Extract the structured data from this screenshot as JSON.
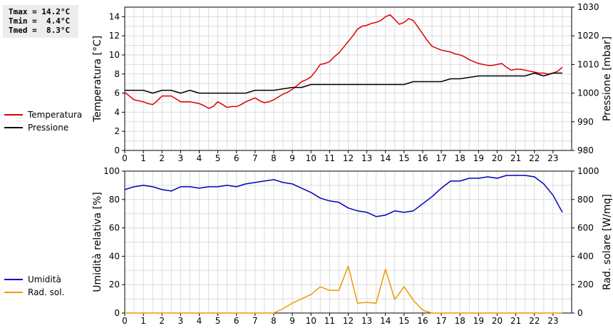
{
  "stats": {
    "tmax": "Tmax = 14.2°C",
    "tmin": "Tmin =  4.4°C",
    "tmed": "Tmed =  8.3°C"
  },
  "chart_data": [
    {
      "type": "line",
      "ylabel": "Temperatura [°C]",
      "y2label": "Pressione [mbar]",
      "xlim": [
        0,
        24
      ],
      "ylim": [
        0,
        15
      ],
      "y2lim": [
        980,
        1030
      ],
      "xticks": [
        0,
        1,
        2,
        3,
        4,
        5,
        6,
        7,
        8,
        9,
        10,
        11,
        12,
        13,
        14,
        15,
        16,
        17,
        18,
        19,
        20,
        21,
        22,
        23
      ],
      "yticks": [
        0,
        2,
        4,
        6,
        8,
        10,
        12,
        14
      ],
      "y2ticks": [
        980,
        990,
        1000,
        1010,
        1020,
        1030
      ],
      "grid": true,
      "legend_position": "left",
      "series": [
        {
          "name": "Temperatura",
          "axis": "left",
          "color": "#dd0000",
          "x": [
            0,
            0.25,
            0.5,
            0.75,
            1,
            1.25,
            1.5,
            1.75,
            2,
            2.25,
            2.5,
            2.75,
            3,
            3.25,
            3.5,
            3.75,
            4,
            4.25,
            4.5,
            4.75,
            5,
            5.25,
            5.5,
            5.75,
            6,
            6.25,
            6.5,
            6.75,
            7,
            7.25,
            7.5,
            7.75,
            8,
            8.25,
            8.5,
            8.75,
            9,
            9.25,
            9.5,
            9.75,
            10,
            10.25,
            10.5,
            10.75,
            11,
            11.25,
            11.5,
            11.75,
            12,
            12.25,
            12.5,
            12.75,
            13,
            13.25,
            13.5,
            13.75,
            14,
            14.25,
            14.5,
            14.75,
            15,
            15.25,
            15.5,
            15.75,
            16,
            16.25,
            16.5,
            16.75,
            17,
            17.25,
            17.5,
            17.75,
            18,
            18.25,
            18.5,
            18.75,
            19,
            19.25,
            19.5,
            19.75,
            20,
            20.25,
            20.5,
            20.75,
            21,
            21.25,
            21.5,
            21.75,
            22,
            22.25,
            22.5,
            22.75,
            23,
            23.25,
            23.5
          ],
          "values": [
            6.1,
            5.7,
            5.3,
            5.2,
            5.1,
            4.9,
            4.8,
            5.2,
            5.7,
            5.7,
            5.7,
            5.4,
            5.1,
            5.1,
            5.1,
            5.0,
            4.9,
            4.7,
            4.4,
            4.6,
            5.1,
            4.8,
            4.5,
            4.6,
            4.6,
            4.8,
            5.1,
            5.3,
            5.5,
            5.2,
            5.0,
            5.1,
            5.3,
            5.6,
            5.9,
            6.1,
            6.4,
            6.8,
            7.2,
            7.4,
            7.7,
            8.3,
            9.0,
            9.1,
            9.3,
            9.8,
            10.2,
            10.8,
            11.4,
            12.0,
            12.7,
            13.0,
            13.1,
            13.3,
            13.4,
            13.6,
            14.0,
            14.2,
            13.7,
            13.2,
            13.4,
            13.8,
            13.6,
            12.9,
            12.2,
            11.5,
            10.9,
            10.7,
            10.5,
            10.4,
            10.3,
            10.1,
            10.0,
            9.8,
            9.5,
            9.3,
            9.1,
            9.0,
            8.9,
            8.9,
            9.0,
            9.1,
            8.7,
            8.4,
            8.5,
            8.5,
            8.4,
            8.3,
            8.2,
            8.1,
            8.1,
            8.0,
            8.1,
            8.3,
            8.7
          ]
        },
        {
          "name": "Pressione",
          "axis": "right",
          "color": "#000000",
          "x": [
            0,
            1,
            1.5,
            2,
            2.5,
            3,
            3.5,
            4,
            4.5,
            5,
            6,
            6.5,
            7,
            8,
            9,
            9.5,
            10,
            11,
            12,
            13,
            14,
            15,
            15.5,
            16,
            17,
            17.5,
            18,
            19,
            20,
            21,
            21.5,
            22,
            22.5,
            23,
            23.5
          ],
          "values": [
            1001,
            1001,
            1000,
            1001,
            1001,
            1000,
            1001,
            1000,
            1000,
            1000,
            1000,
            1000,
            1001,
            1001,
            1002,
            1002,
            1003,
            1003,
            1003,
            1003,
            1003,
            1003,
            1004,
            1004,
            1004,
            1005,
            1005,
            1006,
            1006,
            1006,
            1006,
            1007,
            1006,
            1007,
            1007
          ]
        }
      ]
    },
    {
      "type": "line",
      "ylabel": "Umidità relativa [%]",
      "y2label": "Rad. solare [W/mq]",
      "xlim": [
        0,
        24
      ],
      "ylim": [
        0,
        100
      ],
      "y2lim": [
        0,
        1000
      ],
      "xticks": [
        0,
        1,
        2,
        3,
        4,
        5,
        6,
        7,
        8,
        9,
        10,
        11,
        12,
        13,
        14,
        15,
        16,
        17,
        18,
        19,
        20,
        21,
        22,
        23
      ],
      "yticks": [
        0,
        20,
        40,
        60,
        80,
        100
      ],
      "y2ticks": [
        0,
        200,
        400,
        600,
        800,
        1000
      ],
      "grid": true,
      "legend_position": "left",
      "series": [
        {
          "name": "Umidità",
          "axis": "left",
          "color": "#0000bb",
          "x": [
            0,
            0.5,
            1,
            1.5,
            2,
            2.5,
            3,
            3.5,
            4,
            4.5,
            5,
            5.5,
            6,
            6.5,
            7,
            7.5,
            8,
            8.5,
            9,
            9.5,
            10,
            10.5,
            11,
            11.5,
            12,
            12.5,
            13,
            13.5,
            14,
            14.5,
            15,
            15.5,
            16,
            16.5,
            17,
            17.5,
            18,
            18.5,
            19,
            19.5,
            20,
            20.5,
            21,
            21.5,
            22,
            22.5,
            23,
            23.5
          ],
          "values": [
            87,
            89,
            90,
            89,
            87,
            86,
            89,
            89,
            88,
            89,
            89,
            90,
            89,
            91,
            92,
            93,
            94,
            92,
            91,
            88,
            85,
            81,
            79,
            78,
            74,
            72,
            71,
            68,
            69,
            72,
            71,
            72,
            77,
            82,
            88,
            93,
            93,
            95,
            95,
            96,
            95,
            97,
            97,
            97,
            96,
            91,
            83,
            71
          ]
        },
        {
          "name": "Rad. sol.",
          "axis": "right",
          "color": "#ee9900",
          "x": [
            0,
            1,
            2,
            3,
            4,
            5,
            6,
            7,
            8,
            8.5,
            9,
            9.5,
            10,
            10.5,
            11,
            11.5,
            12,
            12.5,
            13,
            13.5,
            14,
            14.5,
            15,
            15.5,
            16,
            16.5,
            17,
            18,
            19,
            20,
            21,
            22,
            23,
            23.5
          ],
          "values": [
            0,
            0,
            0,
            0,
            0,
            0,
            0,
            0,
            0,
            30,
            70,
            100,
            130,
            185,
            160,
            160,
            330,
            70,
            75,
            70,
            310,
            95,
            185,
            90,
            20,
            0,
            0,
            0,
            0,
            0,
            0,
            0,
            0,
            0
          ]
        }
      ]
    }
  ]
}
